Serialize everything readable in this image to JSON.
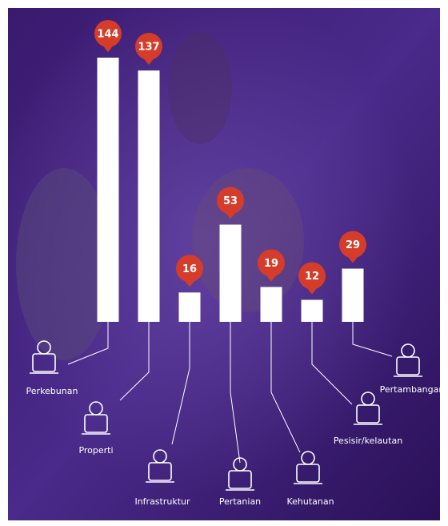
{
  "chart_data": {
    "type": "bar",
    "categories": [
      "Perkebunan",
      "Properti",
      "Infrastruktur",
      "Pertanian",
      "Kehutanan",
      "Pesisir/kelautan",
      "Pertambangan"
    ],
    "values": [
      144,
      137,
      16,
      53,
      19,
      12,
      29
    ],
    "color": "#ffffff",
    "label_color": "#d63c2a"
  }
}
